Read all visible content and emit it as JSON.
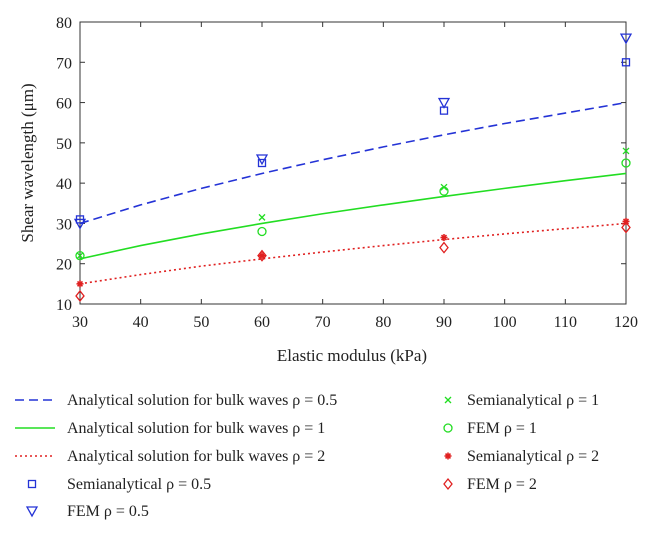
{
  "chart_data": {
    "type": "line",
    "xlabel": "Elastic modulus (kPa)",
    "ylabel": "Shear wavelength (μm)",
    "xlim": [
      30,
      120
    ],
    "ylim": [
      10,
      80
    ],
    "xticks": [
      30,
      40,
      50,
      60,
      70,
      80,
      90,
      100,
      110,
      120
    ],
    "yticks": [
      10,
      20,
      30,
      40,
      50,
      60,
      70,
      80
    ],
    "grid": false,
    "legend_position": "below",
    "series": [
      {
        "name": "Analytical solution for bulk waves ρ = 0.5",
        "kind": "line",
        "style": "dashed",
        "color": "#2433d6",
        "x": [
          30,
          40,
          50,
          60,
          70,
          80,
          90,
          100,
          110,
          120
        ],
        "y": [
          30.0,
          34.6,
          38.7,
          42.4,
          45.8,
          49.0,
          52.0,
          54.8,
          57.4,
          60.0
        ]
      },
      {
        "name": "Analytical solution for bulk waves ρ = 1",
        "kind": "line",
        "style": "solid",
        "color": "#22dd22",
        "x": [
          30,
          40,
          50,
          60,
          70,
          80,
          90,
          100,
          110,
          120
        ],
        "y": [
          21.2,
          24.5,
          27.4,
          30.0,
          32.4,
          34.6,
          36.7,
          38.7,
          40.6,
          42.4
        ]
      },
      {
        "name": "Analytical solution for bulk waves ρ = 2",
        "kind": "line",
        "style": "dotted",
        "color": "#e02020",
        "x": [
          30,
          40,
          50,
          60,
          70,
          80,
          90,
          100,
          110,
          120
        ],
        "y": [
          15.0,
          17.3,
          19.4,
          21.2,
          22.9,
          24.5,
          26.0,
          27.4,
          28.7,
          30.0
        ]
      },
      {
        "name": "Semianalytical ρ = 0.5",
        "kind": "marker",
        "marker": "square",
        "color": "#2433d6",
        "x": [
          30,
          60,
          90,
          120
        ],
        "y": [
          31,
          45,
          58,
          70
        ]
      },
      {
        "name": "FEM ρ = 0.5",
        "kind": "marker",
        "marker": "triangle-down",
        "color": "#2433d6",
        "x": [
          30,
          60,
          90,
          120
        ],
        "y": [
          30,
          46,
          60,
          76
        ]
      },
      {
        "name": "Semianalytical ρ = 1",
        "kind": "marker",
        "marker": "x",
        "color": "#22dd22",
        "x": [
          30,
          60,
          90,
          120
        ],
        "y": [
          22,
          31.5,
          39,
          48
        ]
      },
      {
        "name": "FEM ρ = 1",
        "kind": "marker",
        "marker": "circle",
        "color": "#22dd22",
        "x": [
          30,
          60,
          90,
          120
        ],
        "y": [
          22,
          28,
          38,
          45
        ]
      },
      {
        "name": "Semianalytical ρ = 2",
        "kind": "marker",
        "marker": "star",
        "color": "#e02020",
        "x": [
          30,
          60,
          90,
          120
        ],
        "y": [
          15,
          22,
          26.5,
          30.5
        ]
      },
      {
        "name": "FEM ρ = 2",
        "kind": "marker",
        "marker": "diamond",
        "color": "#e02020",
        "x": [
          30,
          60,
          90,
          120
        ],
        "y": [
          12,
          22,
          24,
          29
        ]
      }
    ]
  }
}
